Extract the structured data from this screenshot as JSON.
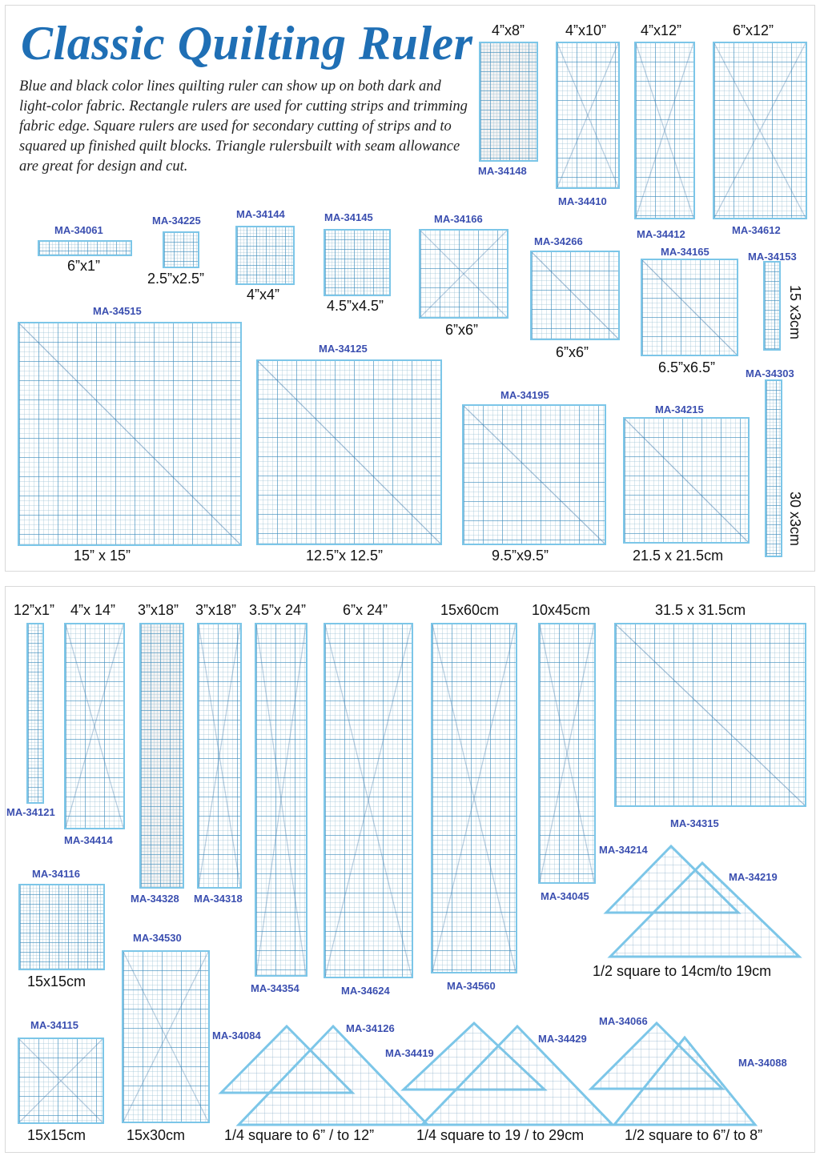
{
  "title": "Classic Quilting Ruler",
  "description": "Blue and black color lines quilting ruler can show up on both dark and light-color fabric. Rectangle rulers are used for cutting strips and trimming fabric edge.  Square rulers are used for secondary cutting of strips and to squared up finished quilt blocks. Triangle rulersbuilt with seam allowance are great for design and cut.",
  "top": {
    "r34148": {
      "code": "MA-34148",
      "size": "4”x8”"
    },
    "r34410": {
      "code": "MA-34410",
      "size": "4”x10”"
    },
    "r34412": {
      "code": "MA-34412",
      "size": "4”x12”"
    },
    "r34612": {
      "code": "MA-34612",
      "size": "6”x12”"
    },
    "r34061": {
      "code": "MA-34061",
      "size": "6”x1”"
    },
    "r34225": {
      "code": "MA-34225",
      "size": "2.5”x2.5”"
    },
    "r34144": {
      "code": "MA-34144",
      "size": "4”x4”"
    },
    "r34145": {
      "code": "MA-34145",
      "size": "4.5”x4.5”"
    },
    "r34166": {
      "code": "MA-34166",
      "size": "6”x6”"
    },
    "r34266": {
      "code": "MA-34266",
      "size": "6”x6”"
    },
    "r34165": {
      "code": "MA-34165",
      "size": "6.5”x6.5”"
    },
    "r34153": {
      "code": "MA-34153",
      "size": "15 x3cm"
    },
    "r34515": {
      "code": "MA-34515",
      "size": "15” x 15”"
    },
    "r34125": {
      "code": "MA-34125",
      "size": "12.5”x 12.5”"
    },
    "r34195": {
      "code": "MA-34195",
      "size": "9.5”x9.5”"
    },
    "r34215": {
      "code": "MA-34215",
      "size": "21.5 x 21.5cm"
    },
    "r34303": {
      "code": "MA-34303",
      "size": "30 x3cm"
    }
  },
  "bottom": {
    "r34121": {
      "code": "MA-34121",
      "size": "12”x1”"
    },
    "r34414": {
      "code": "MA-34414",
      "size": "4”x 14”"
    },
    "r34328": {
      "code": "MA-34328",
      "size": "3”x18”"
    },
    "r34318": {
      "code": "MA-34318",
      "size": "3”x18”"
    },
    "r34354": {
      "code": "MA-34354",
      "size": "3.5”x 24”"
    },
    "r34624": {
      "code": "MA-34624",
      "size": "6”x 24”"
    },
    "r34560": {
      "code": "MA-34560",
      "size": "15x60cm"
    },
    "r34045": {
      "code": "MA-34045",
      "size": "10x45cm"
    },
    "r34315": {
      "code": "MA-34315",
      "size": "31.5 x 31.5cm"
    },
    "r34116": {
      "code": "MA-34116",
      "size": "15x15cm"
    },
    "r34530": {
      "code": "MA-34530",
      "size": "15x30cm"
    },
    "r34115": {
      "code": "MA-34115",
      "size": "15x15cm"
    },
    "t34214": {
      "code": "MA-34214"
    },
    "t34219": {
      "code": "MA-34219"
    },
    "tri_half_cm": "1/2 square to 14cm/to 19cm",
    "t34084": {
      "code": "MA-34084"
    },
    "t34126": {
      "code": "MA-34126"
    },
    "tri_quarter_in": "1/4 square to 6” / to 12”",
    "t34419": {
      "code": "MA-34419"
    },
    "t34429": {
      "code": "MA-34429"
    },
    "tri_quarter_cm": "1/4 square to 19 / to 29cm",
    "t34066": {
      "code": "MA-34066"
    },
    "t34088": {
      "code": "MA-34088"
    },
    "tri_half_in": "1/2 square to 6”/ to 8”"
  }
}
